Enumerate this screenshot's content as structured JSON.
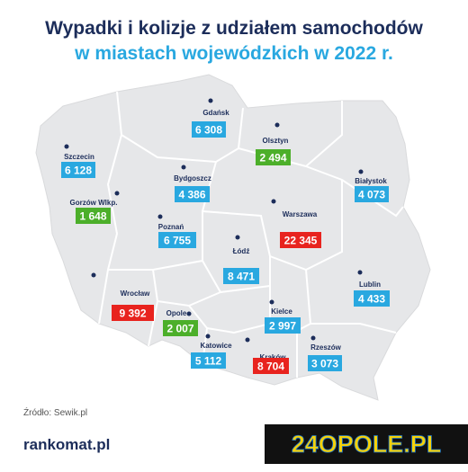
{
  "header": {
    "title_line1": "Wypadki i kolizje z udziałem samochodów",
    "title_line2": "w miastach wojewódzkich w 2022 r."
  },
  "cities": [
    {
      "name": "Gdańsk",
      "value": "6 308",
      "color": "#29a8e0"
    },
    {
      "name": "Olsztyn",
      "value": "2 494",
      "color": "#4caf2a"
    },
    {
      "name": "Szczecin",
      "value": "6 128",
      "color": "#29a8e0"
    },
    {
      "name": "Bydgoszcz",
      "value": "4 386",
      "color": "#29a8e0"
    },
    {
      "name": "Białystok",
      "value": "4 073",
      "color": "#29a8e0"
    },
    {
      "name": "Gorzów Wlkp.",
      "value": "1 648",
      "color": "#4caf2a"
    },
    {
      "name": "Poznań",
      "value": "6 755",
      "color": "#29a8e0"
    },
    {
      "name": "Warszawa",
      "value": "22 345",
      "color": "#e8231e"
    },
    {
      "name": "Łódź",
      "value": "8 471",
      "color": "#29a8e0"
    },
    {
      "name": "Lublin",
      "value": "4 433",
      "color": "#29a8e0"
    },
    {
      "name": "Wrocław",
      "value": "9 392",
      "color": "#e8231e"
    },
    {
      "name": "Opole",
      "value": "2 007",
      "color": "#4caf2a"
    },
    {
      "name": "Kielce",
      "value": "2 997",
      "color": "#29a8e0"
    },
    {
      "name": "Katowice",
      "value": "5 112",
      "color": "#29a8e0"
    },
    {
      "name": "Rzeszów",
      "value": "3 073",
      "color": "#29a8e0"
    },
    {
      "name": "Kraków",
      "value": "8 704",
      "color": "#e8231e"
    }
  ],
  "source": "Źródło: Sewik.pl",
  "footer": {
    "brand": "rankomat.pl",
    "logo": "24OPOLE.PL"
  }
}
